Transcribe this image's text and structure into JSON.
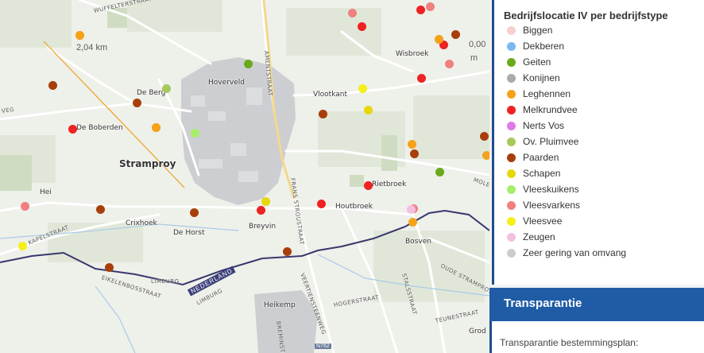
{
  "map": {
    "places": [
      {
        "name": "Stramproy",
        "cls": "town"
      },
      {
        "name": "Hoverveld",
        "cls": "vil"
      },
      {
        "name": "De Berg",
        "cls": "vil"
      },
      {
        "name": "De Boberden",
        "cls": "vil"
      },
      {
        "name": "Vlootkant",
        "cls": "vil"
      },
      {
        "name": "Wisbroek",
        "cls": "vil"
      },
      {
        "name": "Hei",
        "cls": "vil"
      },
      {
        "name": "Crixhoek",
        "cls": "vil"
      },
      {
        "name": "De Horst",
        "cls": "vil"
      },
      {
        "name": "Breyvin",
        "cls": "vil"
      },
      {
        "name": "Houtbroek",
        "cls": "vil"
      },
      {
        "name": "Rietbroek",
        "cls": "vil"
      },
      {
        "name": "Bosven",
        "cls": "vil"
      },
      {
        "name": "Heikemp",
        "cls": "vil"
      },
      {
        "name": "Grod",
        "cls": "vil"
      }
    ],
    "roads": [
      "WUFFELTERSTRAAT",
      "AMENTSTRAAT",
      "FRANS STROUSTRAAT",
      "VEERTIENSTEENWEG",
      "KAPELSTRAAT",
      "EIKELENBOSSTRAAT",
      "HOGERSTRAAT",
      "STALSSTRAAT",
      "OUDE STRAMPROY",
      "TEUNESTRAAT",
      "BREMINSTR",
      "MOLENW",
      "VEG"
    ],
    "border_labels": [
      "NEDERLAND",
      "LIMBURG",
      "LIMBURG"
    ],
    "road_sign": "N762",
    "measure_label": "2,04 km",
    "measure_label2": "0,00",
    "measure_unit": "m",
    "dots": [
      {
        "t": "Leghennen"
      },
      {
        "t": "Vleesvarkens"
      },
      {
        "t": "Melkrundvee"
      },
      {
        "t": "Vleesvarkens"
      },
      {
        "t": "Melkrundvee"
      },
      {
        "t": "Ov. Pluimvee"
      },
      {
        "t": "Paarden"
      },
      {
        "t": "Melkrundvee"
      },
      {
        "t": "Paarden"
      },
      {
        "t": "Leghennen"
      },
      {
        "t": "Paarden"
      },
      {
        "t": "Vleesvarkens"
      },
      {
        "t": "Geiten"
      },
      {
        "t": "Melkrundvee"
      },
      {
        "t": "Ov. Pluimvee"
      },
      {
        "t": "Vleeskuikens"
      },
      {
        "t": "Leghennen"
      },
      {
        "t": "Paarden"
      },
      {
        "t": "Melkrundvee"
      },
      {
        "t": "Vleesvee"
      },
      {
        "t": "Schapen"
      },
      {
        "t": "Paarden"
      },
      {
        "t": "Leghennen"
      },
      {
        "t": "Paarden"
      },
      {
        "t": "Geiten"
      },
      {
        "t": "Melkrundvee"
      },
      {
        "t": "Vleesvarkens"
      },
      {
        "t": "Paarden"
      },
      {
        "t": "Paarden"
      },
      {
        "t": "Melkrundvee"
      },
      {
        "t": "Schapen"
      },
      {
        "t": "Melkrundvee"
      },
      {
        "t": "Vleesvarkens"
      },
      {
        "t": "Zeugen"
      },
      {
        "t": "Leghennen"
      },
      {
        "t": "Vleesvee"
      },
      {
        "t": "Paarden"
      },
      {
        "t": "Paarden"
      },
      {
        "t": "Leghennen"
      },
      {
        "t": "Leghennen"
      },
      {
        "t": "Leghennen"
      }
    ]
  },
  "legend": {
    "title": "Bedrijfslocatie IV per bedrijfstype",
    "items": [
      {
        "label": "Biggen",
        "color": "#f7cfcf"
      },
      {
        "label": "Dekberen",
        "color": "#7ab8f0"
      },
      {
        "label": "Geiten",
        "color": "#6aaa1a"
      },
      {
        "label": "Konijnen",
        "color": "#aaaaaa"
      },
      {
        "label": "Leghennen",
        "color": "#f5a21a"
      },
      {
        "label": "Melkrundvee",
        "color": "#ee2222"
      },
      {
        "label": "Nerts Vos",
        "color": "#e07ae8"
      },
      {
        "label": "Ov. Pluimvee",
        "color": "#a6c95a"
      },
      {
        "label": "Paarden",
        "color": "#a83e0a"
      },
      {
        "label": "Schapen",
        "color": "#e6d80a"
      },
      {
        "label": "Vleeskuikens",
        "color": "#a6ee6a"
      },
      {
        "label": "Vleesvarkens",
        "color": "#f08080"
      },
      {
        "label": "Vleesvee",
        "color": "#f5f01a"
      },
      {
        "label": "Zeugen",
        "color": "#f3c0e0"
      },
      {
        "label": "Zeer gering van omvang",
        "color": "#cccccc"
      }
    ]
  },
  "transparency": {
    "title": "Transparantie",
    "subtitle": "Transparantie bestemmingsplan:"
  }
}
